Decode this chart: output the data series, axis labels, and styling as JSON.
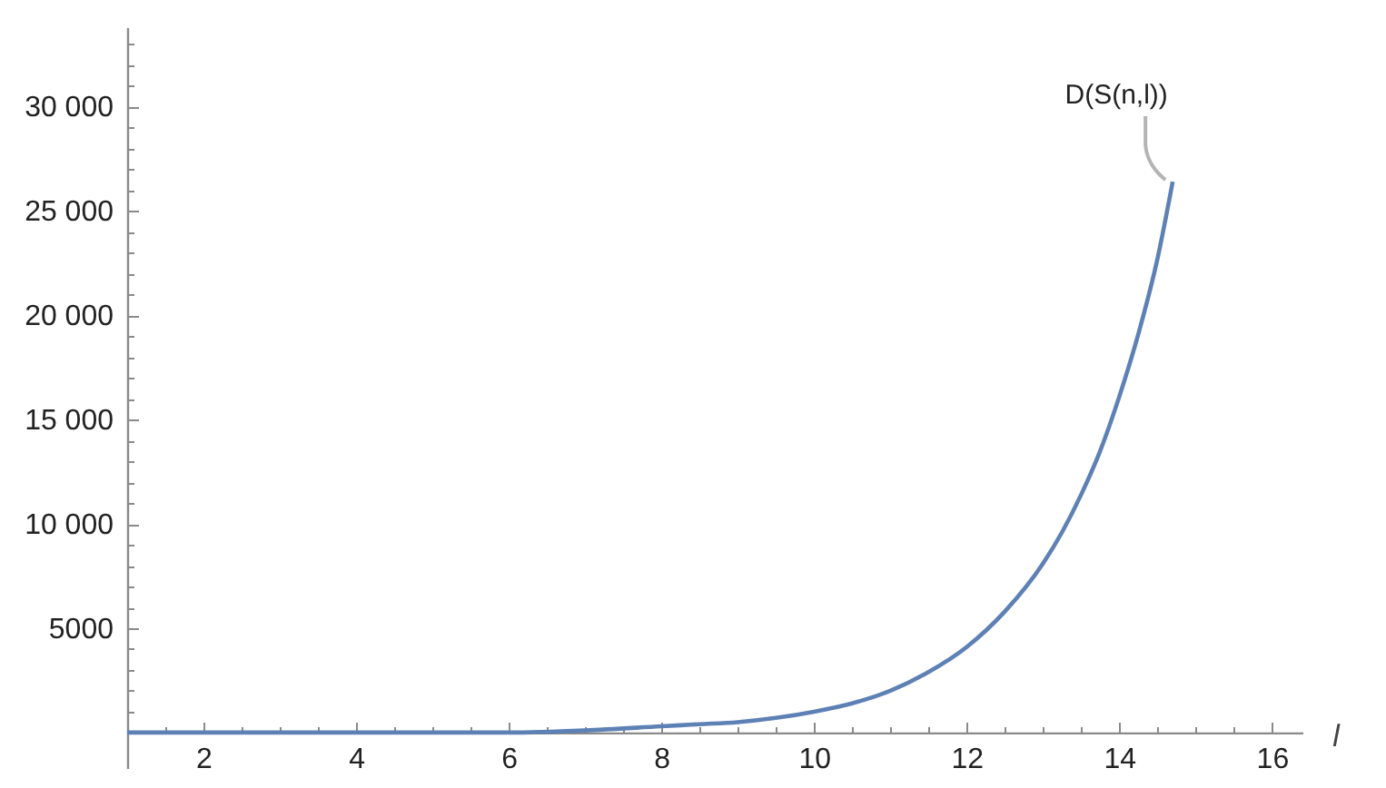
{
  "chart_data": {
    "type": "line",
    "xlabel": "l",
    "x": [
      1,
      2,
      3,
      4,
      5,
      6,
      7,
      8,
      8.5,
      9,
      9.5,
      10,
      10.5,
      11,
      11.5,
      12,
      12.5,
      13,
      13.25,
      13.5,
      13.75,
      14,
      14.25,
      14.5,
      14.7
    ],
    "series": [
      {
        "name": "D(S(n,l))",
        "color": "#5e81b5",
        "values": [
          0,
          0,
          0,
          0,
          0,
          0,
          100,
          300,
          400,
          500,
          700,
          1000,
          1400,
          2000,
          2900,
          4100,
          5800,
          8100,
          9600,
          11400,
          13500,
          16100,
          19100,
          22700,
          26400
        ]
      }
    ],
    "xlim": [
      1,
      16.4
    ],
    "xticks": [
      {
        "value": 1.5,
        "label": null
      },
      2,
      {
        "value": 2.5,
        "label": null
      },
      {
        "value": 3,
        "label": null
      },
      {
        "value": 3.5,
        "label": null
      },
      4,
      {
        "value": 4.5,
        "label": null
      },
      {
        "value": 5,
        "label": null
      },
      {
        "value": 5.5,
        "label": null
      },
      6,
      {
        "value": 6.5,
        "label": null
      },
      {
        "value": 7,
        "label": null
      },
      {
        "value": 7.5,
        "label": null
      },
      8,
      {
        "value": 8.5,
        "label": null
      },
      {
        "value": 9,
        "label": null
      },
      {
        "value": 9.5,
        "label": null
      },
      10,
      {
        "value": 10.5,
        "label": null
      },
      {
        "value": 11,
        "label": null
      },
      {
        "value": 11.5,
        "label": null
      },
      12,
      {
        "value": 12.5,
        "label": null
      },
      {
        "value": 13,
        "label": null
      },
      {
        "value": 13.5,
        "label": null
      },
      14,
      {
        "value": 14.5,
        "label": null
      },
      {
        "value": 15,
        "label": null
      },
      {
        "value": 15.5,
        "label": null
      },
      16
    ],
    "ylim": [
      -1700,
      33800
    ],
    "yticks": [
      {
        "value": 1000,
        "label": null
      },
      {
        "value": 2000,
        "label": null
      },
      {
        "value": 3000,
        "label": null
      },
      {
        "value": 4000,
        "label": null
      },
      5000,
      {
        "value": 6000,
        "label": null
      },
      {
        "value": 7000,
        "label": null
      },
      {
        "value": 8000,
        "label": null
      },
      {
        "value": 9000,
        "label": null
      },
      {
        "value": 10000,
        "label": "10 000"
      },
      {
        "value": 11000,
        "label": null
      },
      {
        "value": 12000,
        "label": null
      },
      {
        "value": 13000,
        "label": null
      },
      {
        "value": 14000,
        "label": null
      },
      {
        "value": 15000,
        "label": "15 000"
      },
      {
        "value": 16000,
        "label": null
      },
      {
        "value": 17000,
        "label": null
      },
      {
        "value": 18000,
        "label": null
      },
      {
        "value": 19000,
        "label": null
      },
      {
        "value": 20000,
        "label": "20 000"
      },
      {
        "value": 21000,
        "label": null
      },
      {
        "value": 22000,
        "label": null
      },
      {
        "value": 23000,
        "label": null
      },
      {
        "value": 24000,
        "label": null
      },
      {
        "value": 25000,
        "label": "25 000"
      },
      {
        "value": 26000,
        "label": null
      },
      {
        "value": 27000,
        "label": null
      },
      {
        "value": 28000,
        "label": null
      },
      {
        "value": 29000,
        "label": null
      },
      {
        "value": 30000,
        "label": "30 000"
      },
      {
        "value": 31000,
        "label": null
      },
      {
        "value": 32000,
        "label": null
      },
      {
        "value": 33000,
        "label": null
      }
    ],
    "line_style": "solid"
  }
}
